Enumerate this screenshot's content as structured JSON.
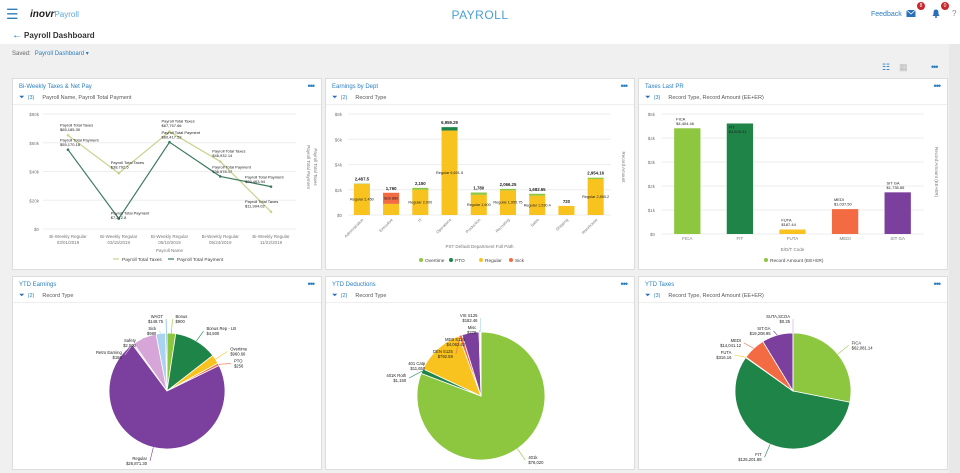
{
  "header": {
    "app_title": "PAYROLL",
    "logo_main": "inovr",
    "logo_sub": "Payroll",
    "feedback": "Feedback",
    "mail_count": "8",
    "notif_count": "0"
  },
  "page": {
    "title": "Payroll Dashboard",
    "saved_label": "Saved:",
    "saved_value": "Payroll Dashboard ▾"
  },
  "colors": {
    "accent": "#2a7fc0",
    "lime": "#8dc63f",
    "dark_green": "#1f8447",
    "yellow": "#f9c31f",
    "orange": "#f26b43",
    "purple": "#7b3f9e",
    "pink": "#d7a6d8",
    "light_blue": "#a9d3f0"
  },
  "cards": [
    {
      "title": "Bi-Weekly Taxes & Net Pay",
      "filter_count": "(3)",
      "filter_text": "Payroll Name, Payroll Total Payment"
    },
    {
      "title": "Earnings by Dept",
      "filter_count": "(2)",
      "filter_text": "Record Type"
    },
    {
      "title": "Taxes Last PR",
      "filter_count": "(3)",
      "filter_text": "Record Type, Record Amount (EE+ER)"
    },
    {
      "title": "YTD Earnings",
      "filter_count": "(2)",
      "filter_text": "Record Type"
    },
    {
      "title": "YTD Deductions",
      "filter_count": "(2)",
      "filter_text": "Record Type"
    },
    {
      "title": "YTD Taxes",
      "filter_count": "(3)",
      "filter_text": "Record Type, Record Amount (EE+ER)"
    }
  ],
  "chart_data": [
    {
      "type": "line",
      "xlabel": "Payroll Name",
      "ylabel": [
        "Payroll Total Payment",
        "Payroll Total Taxes"
      ],
      "categories": [
        [
          "Bi-Weekly Regular",
          "03/01/2019"
        ],
        [
          "Bi-Weekly Regular",
          "03/15/2019"
        ],
        [
          "Bi-Weekly Regular",
          "05/10/2019"
        ],
        [
          "Bi-Weekly Regular",
          "05/24/2019"
        ],
        [
          "Bi-Weekly Regular",
          "11/22/2019"
        ]
      ],
      "ylim": [
        0,
        80000
      ],
      "yticks": [
        "$0",
        "$20k",
        "$40k",
        "$60k",
        "$80k"
      ],
      "grid": true,
      "legend": "bottom",
      "series": [
        {
          "name": "Payroll Total Taxes",
          "color": "#c9d08c",
          "values": [
            65185.39,
            38792.5,
            67757.66,
            46932.14,
            11994.02
          ],
          "labels": [
            "$65,185.39",
            "$38,792.5",
            "$67,757.66",
            "$46,932.14",
            "$11,994.02"
          ]
        },
        {
          "name": "Payroll Total Payment",
          "color": "#3c7a5e",
          "values": [
            55170.18,
            7212.8,
            60417.53,
            36578.17,
            29463.94
          ],
          "labels": [
            "$55,170.18",
            "$7,212.8",
            "$60,417.53",
            "$36,578.17",
            "$29,463.94"
          ]
        }
      ]
    },
    {
      "type": "bar",
      "stacked": true,
      "xlabel": "PST Default Department Full Path",
      "ylabel": "Record Amount",
      "ylim": [
        0,
        8000
      ],
      "yticks": [
        "$0",
        "$2k",
        "$4k",
        "$6k",
        "$8k"
      ],
      "grid": true,
      "legend": "bottom",
      "categories": [
        "Administration",
        "Executive",
        "IT",
        "Operations",
        "Production",
        "Recruiting",
        "Sales",
        "Shipping",
        "Warehouse"
      ],
      "totals": [
        "2,487.5",
        "1,760",
        "2,150",
        "6,959.29",
        "1,780",
        "2,066.25",
        "1,682.65",
        "720",
        "2,954.16"
      ],
      "series": [
        {
          "name": "Overtime",
          "color": "#8dc63f",
          "values": [
            37.5,
            0,
            150,
            0,
            180,
            110.5,
            152.25,
            0,
            98.96
          ]
        },
        {
          "name": "PTO",
          "color": "#1f8447",
          "values": [
            0,
            0,
            0,
            267.79,
            0,
            0,
            0,
            0,
            0
          ]
        },
        {
          "name": "Regular",
          "color": "#f9c31f",
          "values": [
            2450,
            880,
            2000,
            6691.5,
            1600,
            1955.75,
            1530.4,
            720,
            2855.2
          ],
          "labels": [
            "Regular 2,450",
            "",
            "Regular 2,000",
            "Regular 6,691.5",
            "Regular 1,600",
            "Regular 1,955.75",
            "Regular 1,530.4",
            "",
            "Regular 2,855.2"
          ]
        },
        {
          "name": "Sick",
          "color": "#f26b43",
          "values": [
            0,
            880,
            0,
            0,
            0,
            0,
            0,
            0,
            0
          ],
          "labels": [
            "",
            "Sick 880",
            "",
            "",
            "",
            "",
            "",
            "",
            ""
          ]
        }
      ]
    },
    {
      "type": "bar",
      "xlabel": "E/D/T Code",
      "ylabel": "Record Amount (EE+ER)",
      "ylim": [
        0,
        5000
      ],
      "yticks": [
        "$0",
        "$1k",
        "$2k",
        "$3k",
        "$4k",
        "$5k"
      ],
      "grid": true,
      "legend": "bottom",
      "series_name": "Record Amount (EE+ER)",
      "categories": [
        "FICA",
        "FIT",
        "FUTA",
        "MEDI",
        "SIT GA"
      ],
      "values": [
        4404.46,
        4605.41,
        187.44,
        1037.5,
        1735.85
      ],
      "labels": [
        "$4,404.46",
        "$4,605.41",
        "$187.44",
        "$1,037.50",
        "$1,735.85"
      ],
      "colors": [
        "#8dc63f",
        "#1f8447",
        "#f9c31f",
        "#f26b43",
        "#7b3f9e"
      ]
    },
    {
      "type": "pie",
      "slices": [
        {
          "label": "Bonus",
          "value": 900,
          "text": "$900",
          "color": "#8dc63f"
        },
        {
          "label": "Bonus Rep - LB",
          "value": 4500,
          "text": "$4,500",
          "color": "#1f8447"
        },
        {
          "label": "Overtime",
          "value": 960.66,
          "text": "$960.66",
          "color": "#f9c31f"
        },
        {
          "label": "PTO",
          "value": 256,
          "text": "$256",
          "color": "#f26b43"
        },
        {
          "label": "Regular",
          "value": 26871.3,
          "text": "$26,871.30",
          "color": "#7b3f9e"
        },
        {
          "label": "Retro Earning",
          "value": 166,
          "text": "$166",
          "color": "#e9c9e9"
        },
        {
          "label": "Safety",
          "value": 2500,
          "text": "$2,500",
          "color": "#d7a6d8"
        },
        {
          "label": "Sick",
          "value": 980,
          "text": "$980",
          "color": "#a9d3f0"
        },
        {
          "label": "WAGT",
          "value": 148.75,
          "text": "$148.75",
          "color": "#5aa9d6"
        }
      ]
    },
    {
      "type": "pie",
      "slices": [
        {
          "label": "401k",
          "value": 76020,
          "text": "$76,020",
          "color": "#8dc63f"
        },
        {
          "label": "401K Roth",
          "value": 1150,
          "text": "$1,150",
          "color": "#1f8447"
        },
        {
          "label": "401 Catp",
          "value": 11650,
          "text": "$11,650",
          "color": "#f9c31f"
        },
        {
          "label": "DEN S125",
          "value": 792.59,
          "text": "$792.59",
          "color": "#f26b43"
        },
        {
          "label": "MEB S125",
          "value": 4062.42,
          "text": "$4,062.42",
          "color": "#7b3f9e"
        },
        {
          "label": "Misc",
          "value": 279,
          "text": "$279",
          "color": "#d7a6d8"
        },
        {
          "label": "VIS S125",
          "value": 182.46,
          "text": "$182.46",
          "color": "#a9d3f0"
        }
      ]
    },
    {
      "type": "pie",
      "slices": [
        {
          "label": "FICA",
          "value": 62081.14,
          "text": "$62,081.14",
          "color": "#8dc63f"
        },
        {
          "label": "FIT",
          "value": 125201.88,
          "text": "$125,201.88",
          "color": "#1f8447"
        },
        {
          "label": "FUTA",
          "value": 316.16,
          "text": "$316.16",
          "color": "#f9c31f"
        },
        {
          "label": "MEDI",
          "value": 14041.12,
          "text": "$14,041.12",
          "color": "#f26b43"
        },
        {
          "label": "SIT.GA",
          "value": 19208.95,
          "text": "$19,208.95",
          "color": "#7b3f9e"
        },
        {
          "label": "SUTA,SCOA",
          "value": 0.25,
          "text": "$0.25",
          "color": "#d7a6d8"
        }
      ]
    }
  ]
}
